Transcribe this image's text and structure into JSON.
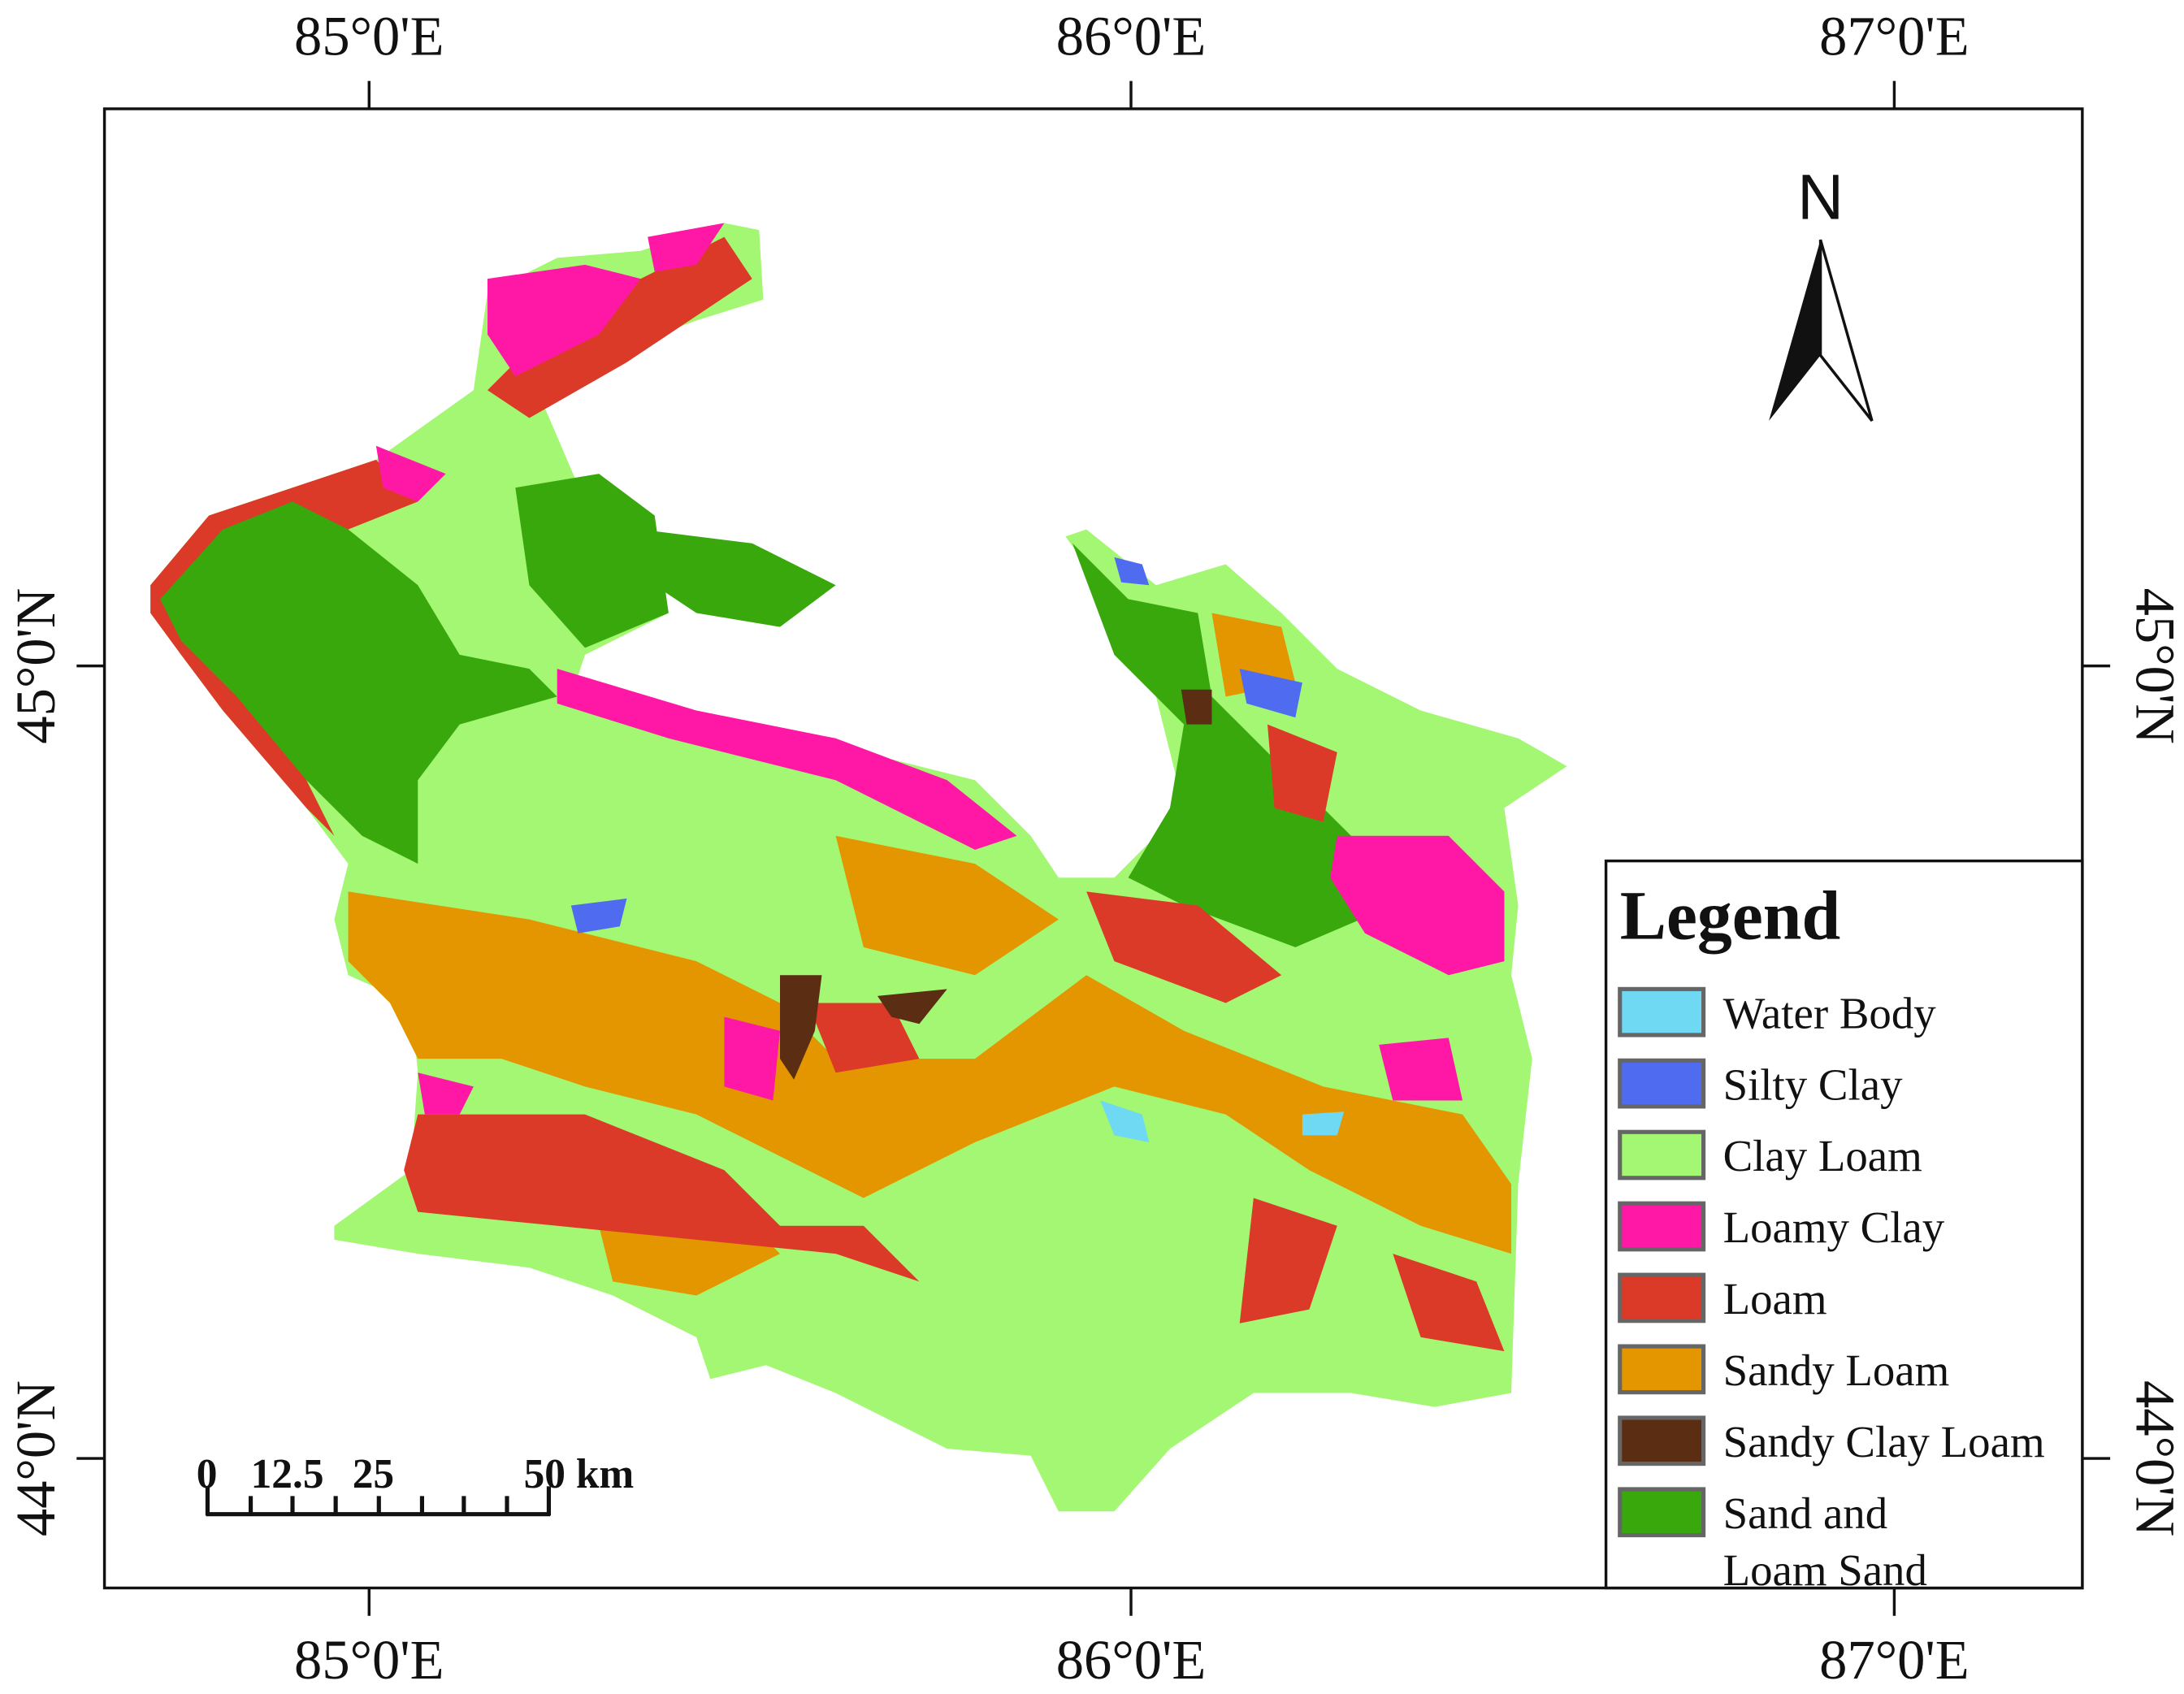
{
  "graticule": {
    "top": [
      "85°0'E",
      "86°0'E",
      "87°0'E"
    ],
    "bottom": [
      "85°0'E",
      "86°0'E",
      "87°0'E"
    ],
    "left": [
      "45°0'N",
      "44°0'N"
    ],
    "right": [
      "45°0'N",
      "44°0'N"
    ]
  },
  "north_arrow": "N",
  "scale_bar": {
    "labels": [
      "0",
      "12.5",
      "25",
      "50 km"
    ]
  },
  "legend": {
    "title": "Legend",
    "items": [
      {
        "lines": [
          "Water Body"
        ],
        "color": "#6fd8f2"
      },
      {
        "lines": [
          "Silty Clay"
        ],
        "color": "#4f6cf0"
      },
      {
        "lines": [
          "Clay Loam"
        ],
        "color": "#a3f772"
      },
      {
        "lines": [
          "Loamy Clay"
        ],
        "color": "#ff18a6"
      },
      {
        "lines": [
          "Loam"
        ],
        "color": "#dc3a28"
      },
      {
        "lines": [
          "Sandy Loam"
        ],
        "color": "#e39600"
      },
      {
        "lines": [
          "Sandy Clay Loam"
        ],
        "color": "#5b2d12"
      },
      {
        "lines": [
          "Sand and",
          "Loam Sand"
        ],
        "color": "#38a80c"
      }
    ]
  }
}
